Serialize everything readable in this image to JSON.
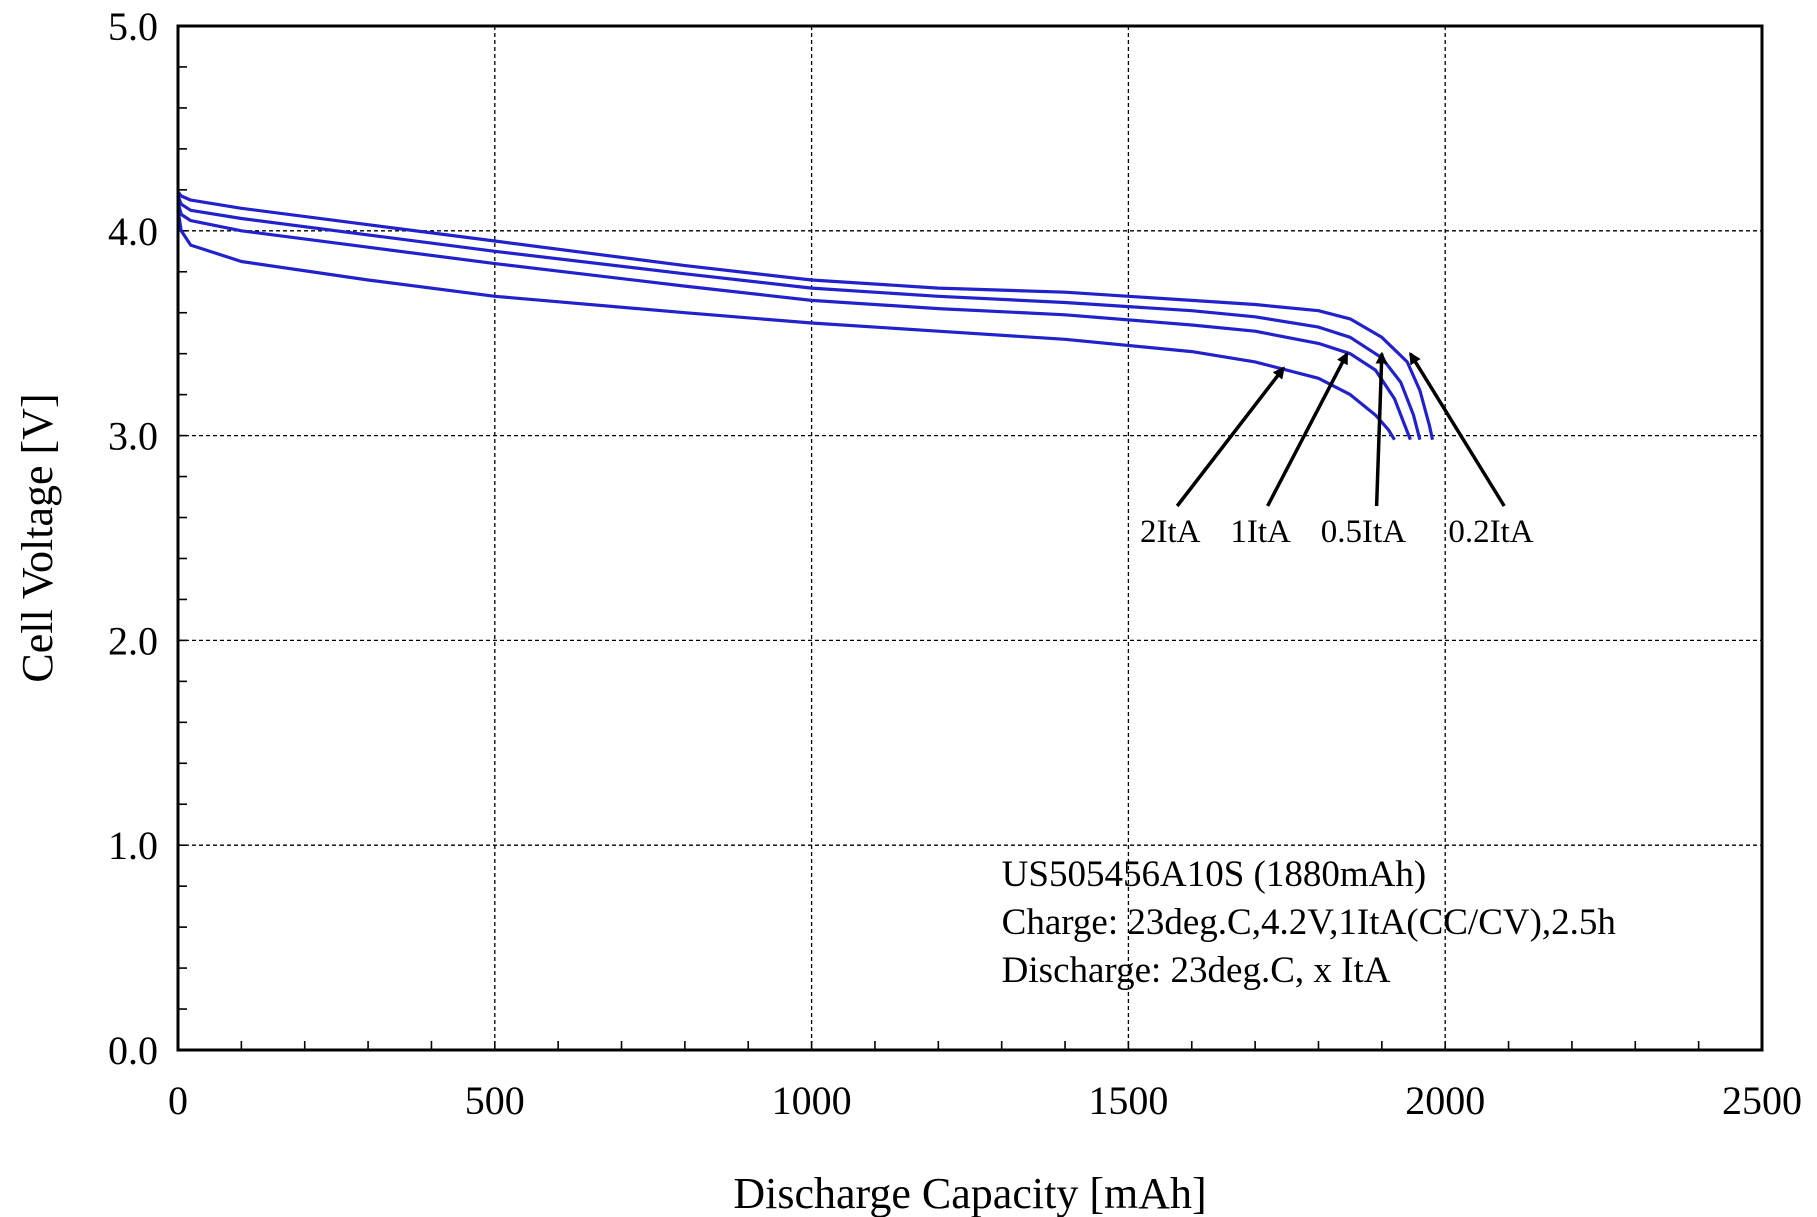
{
  "chart_data": {
    "type": "line",
    "xlabel": "Discharge Capacity [mAh]",
    "ylabel": "Cell Voltage [V]",
    "xlim": [
      0,
      2500
    ],
    "ylim": [
      0.0,
      5.0
    ],
    "xticks": [
      "0",
      "500",
      "1000",
      "1500",
      "2000",
      "2500"
    ],
    "yticks": [
      "0.0",
      "1.0",
      "2.0",
      "3.0",
      "4.0",
      "5.0"
    ],
    "grid": true,
    "line_color": "#2222cc",
    "series": [
      {
        "name": "0.2ItA",
        "points": [
          [
            0,
            4.19
          ],
          [
            5,
            4.17
          ],
          [
            20,
            4.15
          ],
          [
            100,
            4.11
          ],
          [
            300,
            4.03
          ],
          [
            500,
            3.95
          ],
          [
            800,
            3.83
          ],
          [
            1000,
            3.76
          ],
          [
            1200,
            3.72
          ],
          [
            1400,
            3.7
          ],
          [
            1600,
            3.66
          ],
          [
            1700,
            3.64
          ],
          [
            1800,
            3.61
          ],
          [
            1850,
            3.57
          ],
          [
            1900,
            3.48
          ],
          [
            1940,
            3.36
          ],
          [
            1960,
            3.22
          ],
          [
            1975,
            3.05
          ],
          [
            1980,
            2.98
          ]
        ]
      },
      {
        "name": "0.5ItA",
        "points": [
          [
            0,
            4.17
          ],
          [
            5,
            4.13
          ],
          [
            20,
            4.1
          ],
          [
            100,
            4.06
          ],
          [
            300,
            3.98
          ],
          [
            500,
            3.9
          ],
          [
            800,
            3.79
          ],
          [
            1000,
            3.72
          ],
          [
            1200,
            3.68
          ],
          [
            1400,
            3.65
          ],
          [
            1600,
            3.61
          ],
          [
            1700,
            3.58
          ],
          [
            1800,
            3.53
          ],
          [
            1850,
            3.48
          ],
          [
            1900,
            3.38
          ],
          [
            1930,
            3.26
          ],
          [
            1950,
            3.1
          ],
          [
            1960,
            2.98
          ]
        ]
      },
      {
        "name": "1ItA",
        "points": [
          [
            0,
            4.14
          ],
          [
            5,
            4.08
          ],
          [
            20,
            4.05
          ],
          [
            100,
            4.0
          ],
          [
            300,
            3.92
          ],
          [
            500,
            3.84
          ],
          [
            800,
            3.73
          ],
          [
            1000,
            3.66
          ],
          [
            1200,
            3.62
          ],
          [
            1400,
            3.59
          ],
          [
            1600,
            3.54
          ],
          [
            1700,
            3.51
          ],
          [
            1800,
            3.45
          ],
          [
            1850,
            3.4
          ],
          [
            1890,
            3.32
          ],
          [
            1920,
            3.18
          ],
          [
            1935,
            3.06
          ],
          [
            1945,
            2.98
          ]
        ]
      },
      {
        "name": "2ItA",
        "points": [
          [
            0,
            4.1
          ],
          [
            5,
            4.0
          ],
          [
            20,
            3.93
          ],
          [
            100,
            3.85
          ],
          [
            300,
            3.76
          ],
          [
            500,
            3.68
          ],
          [
            800,
            3.6
          ],
          [
            1000,
            3.55
          ],
          [
            1200,
            3.51
          ],
          [
            1400,
            3.47
          ],
          [
            1600,
            3.41
          ],
          [
            1700,
            3.36
          ],
          [
            1800,
            3.28
          ],
          [
            1850,
            3.2
          ],
          [
            1890,
            3.1
          ],
          [
            1910,
            3.03
          ],
          [
            1920,
            2.98
          ]
        ]
      }
    ],
    "series_labels": {
      "text": [
        "2ItA",
        "1ItA",
        "0.5ItA",
        "0.2ItA"
      ],
      "arrow_tips": [
        [
          1745,
          3.33
        ],
        [
          1845,
          3.4
        ],
        [
          1900,
          3.4
        ],
        [
          1945,
          3.4
        ]
      ]
    },
    "annotation": {
      "lines": [
        "US505456A10S (1880mAh)",
        "Charge: 23deg.C,4.2V,1ItA(CC/CV),2.5h",
        "Discharge: 23deg.C, x ItA"
      ],
      "anchor": [
        1300,
        0.8
      ]
    }
  }
}
